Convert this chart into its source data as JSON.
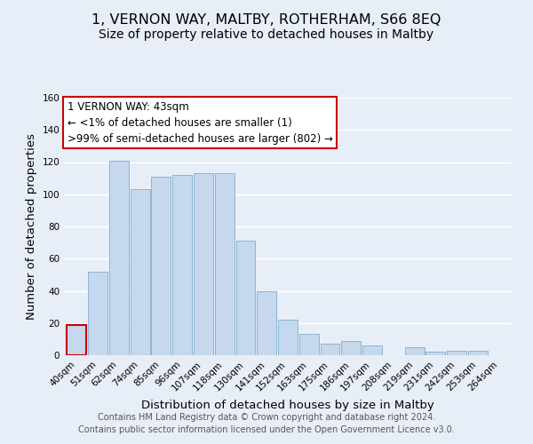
{
  "title": "1, VERNON WAY, MALTBY, ROTHERHAM, S66 8EQ",
  "subtitle": "Size of property relative to detached houses in Maltby",
  "xlabel": "Distribution of detached houses by size in Maltby",
  "ylabel": "Number of detached properties",
  "bar_labels": [
    "40sqm",
    "51sqm",
    "62sqm",
    "74sqm",
    "85sqm",
    "96sqm",
    "107sqm",
    "118sqm",
    "130sqm",
    "141sqm",
    "152sqm",
    "163sqm",
    "175sqm",
    "186sqm",
    "197sqm",
    "208sqm",
    "219sqm",
    "231sqm",
    "242sqm",
    "253sqm",
    "264sqm"
  ],
  "bar_values": [
    19,
    52,
    121,
    103,
    111,
    112,
    113,
    113,
    71,
    40,
    22,
    13,
    7,
    9,
    6,
    0,
    5,
    2,
    3,
    3,
    0
  ],
  "bar_color": "#c5d8ed",
  "bar_edge_color": "#8ab4d4",
  "highlight_bar_index": 0,
  "highlight_edge_color": "#cc0000",
  "ylim": [
    0,
    160
  ],
  "yticks": [
    0,
    20,
    40,
    60,
    80,
    100,
    120,
    140,
    160
  ],
  "annotation_title": "1 VERNON WAY: 43sqm",
  "annotation_line1": "← <1% of detached houses are smaller (1)",
  "annotation_line2": ">99% of semi-detached houses are larger (802) →",
  "annotation_box_color": "#ffffff",
  "annotation_box_edge_color": "#cc0000",
  "footer_line1": "Contains HM Land Registry data © Crown copyright and database right 2024.",
  "footer_line2": "Contains public sector information licensed under the Open Government Licence v3.0.",
  "background_color": "#e8eef8",
  "grid_color": "#ffffff",
  "title_fontsize": 11.5,
  "subtitle_fontsize": 10,
  "axis_label_fontsize": 9.5,
  "tick_fontsize": 7.5,
  "footer_fontsize": 7.0,
  "annotation_fontsize": 8.5
}
